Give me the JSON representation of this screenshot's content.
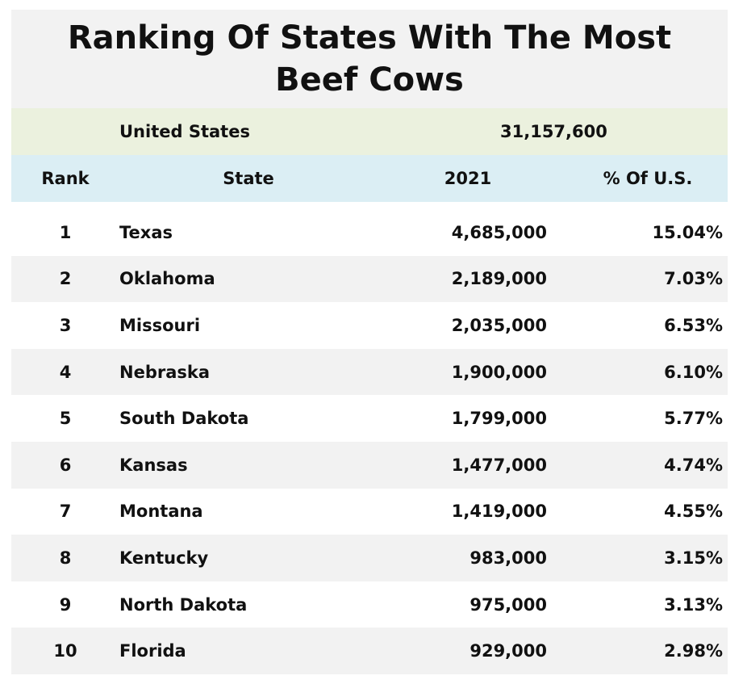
{
  "chart_data": {
    "type": "table",
    "title": "Ranking Of States With The Most Beef Cows",
    "summary": {
      "label": "United States",
      "value": "31,157,600"
    },
    "columns": [
      "Rank",
      "State",
      "2021",
      "% Of U.S."
    ],
    "rows": [
      {
        "rank": "1",
        "state": "Texas",
        "value": "4,685,000",
        "pct": "15.04%"
      },
      {
        "rank": "2",
        "state": "Oklahoma",
        "value": "2,189,000",
        "pct": "7.03%"
      },
      {
        "rank": "3",
        "state": "Missouri",
        "value": "2,035,000",
        "pct": "6.53%"
      },
      {
        "rank": "4",
        "state": "Nebraska",
        "value": "1,900,000",
        "pct": "6.10%"
      },
      {
        "rank": "5",
        "state": "South Dakota",
        "value": "1,799,000",
        "pct": "5.77%"
      },
      {
        "rank": "6",
        "state": "Kansas",
        "value": "1,477,000",
        "pct": "4.74%"
      },
      {
        "rank": "7",
        "state": "Montana",
        "value": "1,419,000",
        "pct": "4.55%"
      },
      {
        "rank": "8",
        "state": "Kentucky",
        "value": "983,000",
        "pct": "3.15%"
      },
      {
        "rank": "9",
        "state": "North Dakota",
        "value": "975,000",
        "pct": "3.13%"
      },
      {
        "rank": "10",
        "state": "Florida",
        "value": "929,000",
        "pct": "2.98%"
      }
    ]
  },
  "colors": {
    "title_bg": "#f2f2f2",
    "summary_bg": "#ebf1de",
    "header_bg": "#dbeef4",
    "band_bg": "#f2f2f2",
    "text": "#111111"
  }
}
